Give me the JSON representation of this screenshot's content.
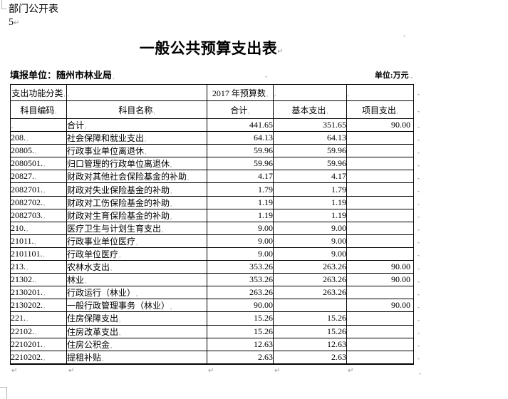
{
  "document": {
    "corner_label": "部门公开表",
    "page_number": "5",
    "title": "一般公共预算支出表",
    "reporting_unit": "填报单位：随州市林业局",
    "unit_label": "单位:万元"
  },
  "marks": {
    "pilcrow": "↵",
    "end_cell": ",",
    "end_row": ".,"
  },
  "table": {
    "header_row1": {
      "c1": "支出功能分类",
      "c2": "",
      "c3": "2017 年预算数",
      "c4": "",
      "c5": ""
    },
    "header_row2": {
      "c1": "科目编码",
      "c2": "科目名称",
      "c3": "合计",
      "c4": "基本支出",
      "c5": "项目支出"
    },
    "rows": [
      {
        "code": "",
        "name": "合计",
        "indent": 0,
        "total": "441.65",
        "basic": "351.65",
        "project": "90.00"
      },
      {
        "code": "208.",
        "name": "社会保障和就业支出",
        "indent": 0,
        "total": "64.13",
        "basic": "64.13",
        "project": ""
      },
      {
        "code": "20805.",
        "name": "行政事业单位离退休",
        "indent": 1,
        "total": "59.96",
        "basic": "59.96",
        "project": ""
      },
      {
        "code": "2080501.",
        "name": "归口管理的行政单位离退休",
        "indent": 2,
        "total": "59.96",
        "basic": "59.96",
        "project": ""
      },
      {
        "code": "20827.",
        "name": "财政对其他社会保险基金的补助",
        "indent": 1,
        "total": "4.17",
        "basic": "4.17",
        "project": ""
      },
      {
        "code": "2082701.",
        "name": "财政对失业保险基金的补助",
        "indent": 2,
        "total": "1.79",
        "basic": "1.79",
        "project": ""
      },
      {
        "code": "2082702.",
        "name": "财政对工伤保险基金的补助",
        "indent": 2,
        "total": "1.19",
        "basic": "1.19",
        "project": ""
      },
      {
        "code": "2082703.",
        "name": "财政对生育保险基金的补助",
        "indent": 2,
        "total": "1.19",
        "basic": "1.19",
        "project": ""
      },
      {
        "code": "210.",
        "name": "医疗卫生与计划生育支出",
        "indent": 0,
        "total": "9.00",
        "basic": "9.00",
        "project": ""
      },
      {
        "code": "21011.",
        "name": "行政事业单位医疗",
        "indent": 1,
        "total": "9.00",
        "basic": "9.00",
        "project": ""
      },
      {
        "code": "2101101.",
        "name": "行政单位医疗",
        "indent": 2,
        "total": "9.00",
        "basic": "9.00",
        "project": ""
      },
      {
        "code": "213.",
        "name": "农林水支出",
        "indent": 0,
        "total": "353.26",
        "basic": "263.26",
        "project": "90.00"
      },
      {
        "code": "21302.",
        "name": "林业",
        "indent": 1,
        "total": "353.26",
        "basic": "263.26",
        "project": "90.00"
      },
      {
        "code": "2130201.",
        "name": "行政运行（林业）",
        "indent": 2,
        "total": "263.26",
        "basic": "263.26",
        "project": ""
      },
      {
        "code": "2130202.",
        "name": "一般行政管理事务（林业）",
        "indent": 2,
        "total": "90.00",
        "basic": "",
        "project": "90.00"
      },
      {
        "code": "221.",
        "name": "住房保障支出",
        "indent": 0,
        "total": "15.26",
        "basic": "15.26",
        "project": ""
      },
      {
        "code": "22102.",
        "name": "住房改革支出",
        "indent": 1,
        "total": "15.26",
        "basic": "15.26",
        "project": ""
      },
      {
        "code": "2210201.",
        "name": "住房公积金",
        "indent": 2,
        "total": "12.63",
        "basic": "12.63",
        "project": ""
      },
      {
        "code": "2210202.",
        "name": "提租补贴",
        "indent": 2,
        "total": "2.63",
        "basic": "2.63",
        "project": ""
      }
    ]
  }
}
